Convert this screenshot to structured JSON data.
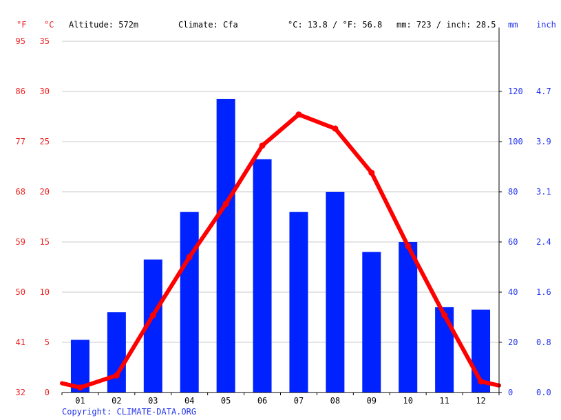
{
  "header": {
    "unit_f": "°F",
    "unit_c": "°C",
    "altitude": "Altitude: 572m",
    "climate": "Climate: Cfa",
    "temp_summary": "°C: 13.8 / °F: 56.8",
    "precip_summary": "mm: 723 / inch: 28.5",
    "unit_mm": "mm",
    "unit_inch": "inch"
  },
  "copyright": "Copyright: CLIMATE-DATA.ORG",
  "colors": {
    "temperature": "#ff0000",
    "precipitation": "#0022ff",
    "axis_temp": "#ee2222",
    "axis_precip": "#2233ee"
  },
  "axes": {
    "celsius_ticks": [
      "0",
      "5",
      "10",
      "15",
      "20",
      "25",
      "30",
      "35"
    ],
    "fahrenheit_ticks": [
      "32",
      "41",
      "50",
      "59",
      "68",
      "77",
      "86",
      "95"
    ],
    "mm_ticks": [
      "0",
      "20",
      "40",
      "60",
      "80",
      "100",
      "120"
    ],
    "inch_ticks": [
      "0.0",
      "0.8",
      "1.6",
      "2.4",
      "3.1",
      "3.9",
      "4.7"
    ],
    "month_labels": [
      "01",
      "02",
      "03",
      "04",
      "05",
      "06",
      "07",
      "08",
      "09",
      "10",
      "11",
      "12"
    ]
  },
  "chart_data": {
    "type": "bar",
    "categories": [
      "01",
      "02",
      "03",
      "04",
      "05",
      "06",
      "07",
      "08",
      "09",
      "10",
      "11",
      "12"
    ],
    "series": [
      {
        "type": "bar",
        "axis": "right",
        "unit": "mm",
        "values": [
          21,
          32,
          53,
          72,
          117,
          93,
          72,
          80,
          56,
          60,
          34,
          33
        ]
      },
      {
        "type": "line",
        "axis": "left",
        "unit": "°C",
        "values": [
          0.5,
          1.7,
          7.7,
          13.5,
          18.8,
          24.6,
          27.7,
          26.3,
          21.9,
          14.6,
          7.7,
          1.1
        ]
      }
    ],
    "ylim_left": [
      0,
      35
    ],
    "ylim_right": [
      0,
      140
    ],
    "grid": true
  }
}
